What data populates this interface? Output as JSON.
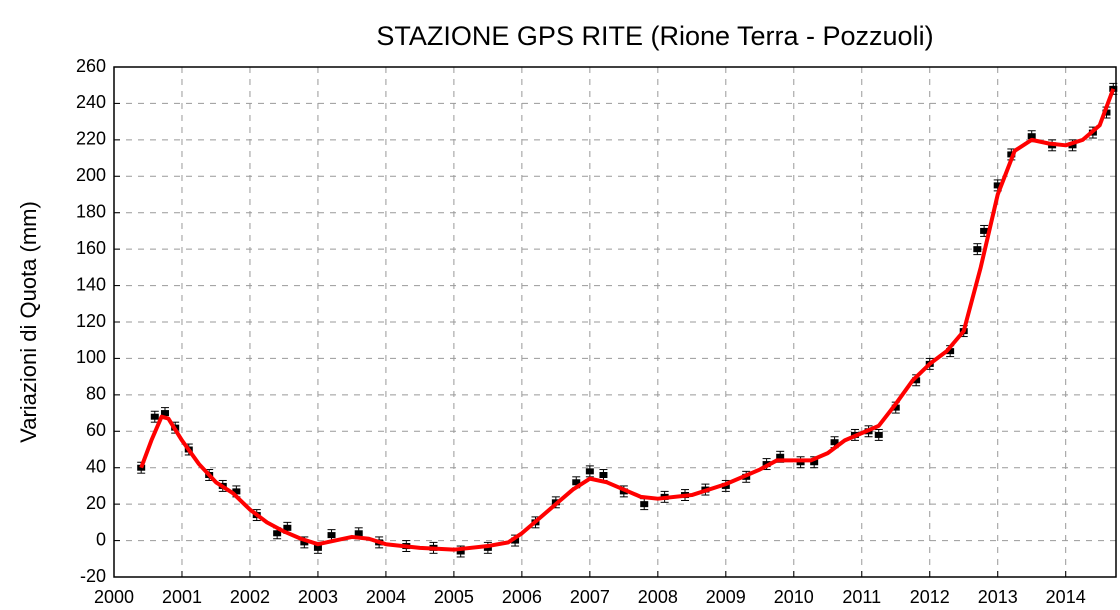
{
  "chart_data": {
    "type": "scatter",
    "title": "STAZIONE GPS RITE (Rione Terra - Pozzuoli)",
    "y_label": "Variazioni di Quota (mm)",
    "xlim": [
      2000,
      2014.74
    ],
    "xticks": [
      2000,
      2001,
      2002,
      2003,
      2004,
      2005,
      2006,
      2007,
      2008,
      2009,
      2010,
      2011,
      2012,
      2013,
      2014
    ],
    "ylim": [
      -20,
      260
    ],
    "yticks": [
      -20,
      0,
      20,
      40,
      60,
      80,
      100,
      120,
      140,
      160,
      180,
      200,
      220,
      240,
      260
    ],
    "grid": true,
    "series": [
      {
        "type": "scatter",
        "color": "#000000",
        "error": 3,
        "x": [
          2000.4,
          2000.6,
          2000.75,
          2000.9,
          2001.1,
          2001.4,
          2001.6,
          2001.8,
          2002.1,
          2002.4,
          2002.55,
          2002.8,
          2003.0,
          2003.2,
          2003.6,
          2003.9,
          2004.3,
          2004.7,
          2005.1,
          2005.5,
          2005.9,
          2006.2,
          2006.5,
          2006.8,
          2007.0,
          2007.2,
          2007.5,
          2007.8,
          2008.1,
          2008.4,
          2008.7,
          2009.0,
          2009.3,
          2009.6,
          2009.8,
          2010.1,
          2010.3,
          2010.6,
          2010.9,
          2011.1,
          2011.25,
          2011.5,
          2011.8,
          2012.0,
          2012.3,
          2012.5,
          2012.7,
          2012.8,
          2013.0,
          2013.2,
          2013.5,
          2013.8,
          2014.1,
          2014.4,
          2014.6,
          2014.7
        ],
        "values": [
          40,
          68,
          70,
          62,
          50,
          36,
          30,
          27,
          14,
          4,
          7,
          -1,
          -4,
          3,
          4,
          -1,
          -3,
          -4,
          -6,
          -4,
          0,
          10,
          21,
          32,
          38,
          36,
          27,
          20,
          24,
          25,
          28,
          30,
          35,
          42,
          46,
          43,
          43,
          54,
          58,
          60,
          58,
          73,
          88,
          97,
          104,
          115,
          160,
          170,
          195,
          212,
          222,
          217,
          217,
          224,
          235,
          248
        ]
      },
      {
        "type": "line",
        "color": "#ff0000",
        "x": [
          2000.4,
          2000.55,
          2000.7,
          2000.8,
          2001.0,
          2001.25,
          2001.5,
          2001.75,
          2002.0,
          2002.25,
          2002.5,
          2002.75,
          2003.0,
          2003.25,
          2003.5,
          2003.75,
          2004.0,
          2004.5,
          2005.0,
          2005.5,
          2005.8,
          2006.0,
          2006.25,
          2006.5,
          2006.75,
          2007.0,
          2007.25,
          2007.5,
          2007.75,
          2008.0,
          2008.5,
          2009.0,
          2009.5,
          2009.75,
          2010.0,
          2010.25,
          2010.5,
          2010.75,
          2011.0,
          2011.25,
          2011.5,
          2011.75,
          2012.0,
          2012.25,
          2012.5,
          2012.75,
          2013.0,
          2013.25,
          2013.5,
          2013.75,
          2014.0,
          2014.25,
          2014.5,
          2014.7
        ],
        "values": [
          40,
          55,
          68,
          67,
          55,
          42,
          32,
          26,
          17,
          10,
          5,
          1,
          -2,
          0,
          2,
          1,
          -2,
          -4,
          -5,
          -3,
          -1,
          4,
          12,
          20,
          28,
          34,
          32,
          28,
          24,
          23,
          25,
          31,
          39,
          44,
          44,
          44,
          48,
          55,
          59,
          63,
          75,
          88,
          97,
          104,
          115,
          150,
          190,
          214,
          220,
          218,
          217,
          220,
          228,
          248
        ]
      }
    ]
  }
}
